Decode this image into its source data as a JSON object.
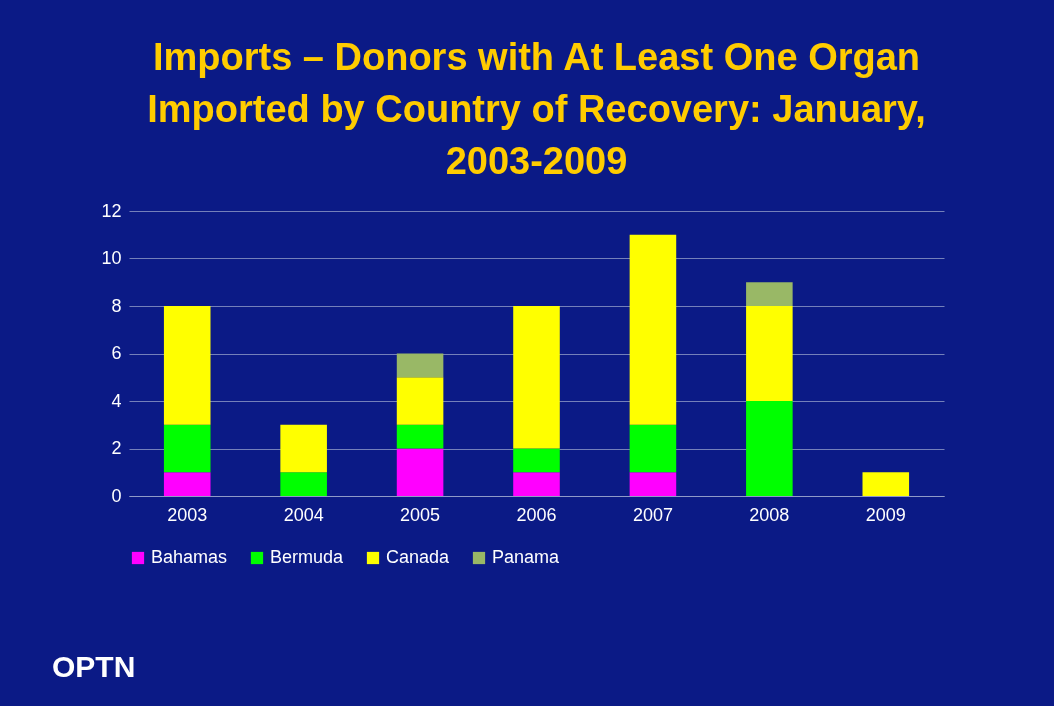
{
  "chart_data": {
    "type": "bar",
    "title": "Imports – Donors with At Least One Organ Imported by Country of Recovery: January, 2003-2009",
    "categories": [
      "2003",
      "2004",
      "2005",
      "2006",
      "2007",
      "2008",
      "2009"
    ],
    "stacked": true,
    "series": [
      {
        "name": "Bahamas",
        "color": "#ff00ff",
        "values": [
          1,
          0,
          2,
          1,
          1,
          0,
          0
        ]
      },
      {
        "name": "Bermuda",
        "color": "#00ff00",
        "values": [
          2,
          1,
          1,
          1,
          2,
          4,
          0
        ]
      },
      {
        "name": "Canada",
        "color": "#ffff00",
        "values": [
          5,
          2,
          2,
          6,
          8,
          4,
          1
        ]
      },
      {
        "name": "Panama",
        "color": "#99b866",
        "values": [
          0,
          0,
          1,
          0,
          0,
          1,
          0
        ]
      }
    ],
    "ylim": [
      0,
      12
    ],
    "yticks": [
      0,
      2,
      4,
      6,
      8,
      10,
      12
    ],
    "grid": "y",
    "legend": "bottom",
    "annotations": [
      "OPTN"
    ]
  }
}
